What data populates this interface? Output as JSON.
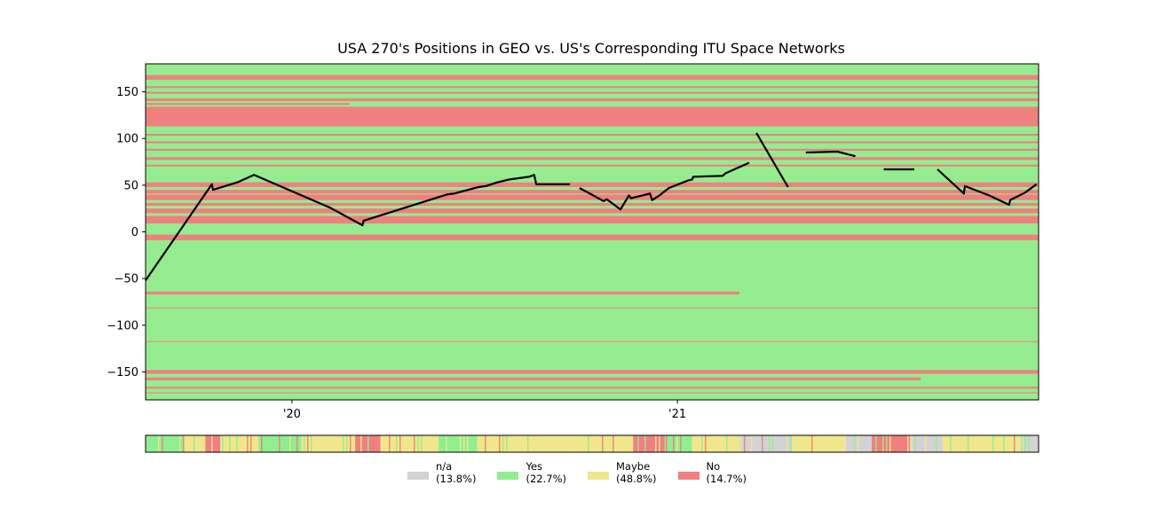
{
  "chart_data": [
    {
      "type": "line",
      "title": "USA 270's Positions in GEO vs. US's Corresponding ITU Space Networks",
      "xlabel": "",
      "ylabel": "",
      "ylim": [
        -180,
        180
      ],
      "xlim": [
        "2019-08-15",
        "2021-12-10"
      ],
      "x_tick_labels": [
        {
          "date": "2020-01-01",
          "label": "'20"
        },
        {
          "date": "2021-01-01",
          "label": "'21"
        }
      ],
      "y_ticks": [
        150,
        100,
        50,
        0,
        -50,
        -100,
        -150
      ],
      "y_tick_labels": [
        "150",
        "100",
        "50",
        "0",
        "−50",
        "−100",
        "−150"
      ],
      "grid": false,
      "line_color": "#000000",
      "background_bands": {
        "description": "Horizontal longitude bands colored by ITU network status",
        "default_color": "#90ee90",
        "bands": [
          {
            "from": 163,
            "to": 168,
            "color": "#f08080"
          },
          {
            "from": 154,
            "to": 156,
            "color": "#f08080"
          },
          {
            "from": 148,
            "to": 150,
            "color": "#f08080"
          },
          {
            "from": 140,
            "to": 143,
            "color": "#f08080"
          },
          {
            "from": 136,
            "to": 138,
            "color": "#f08080",
            "x_end": "2020-02-25"
          },
          {
            "from": 113,
            "to": 134,
            "color": "#f08080"
          },
          {
            "from": 103,
            "to": 105,
            "color": "#f08080"
          },
          {
            "from": 95,
            "to": 97,
            "color": "#f08080"
          },
          {
            "from": 87,
            "to": 89,
            "color": "#f08080"
          },
          {
            "from": 77,
            "to": 80,
            "color": "#f08080"
          },
          {
            "from": 70,
            "to": 72,
            "color": "#f08080"
          },
          {
            "from": 48,
            "to": 53,
            "color": "#f08080"
          },
          {
            "from": 41,
            "to": 45,
            "color": "#f08080"
          },
          {
            "from": 34,
            "to": 40,
            "color": "#f08080"
          },
          {
            "from": 28,
            "to": 31,
            "color": "#f08080"
          },
          {
            "from": 20,
            "to": 25,
            "color": "#f08080"
          },
          {
            "from": 9,
            "to": 17,
            "color": "#f08080"
          },
          {
            "from": -9,
            "to": -3,
            "color": "#f08080"
          },
          {
            "from": -67,
            "to": -64,
            "color": "#f08080",
            "x_end": "2021-03-01"
          },
          {
            "from": -82,
            "to": -81,
            "color": "#f08080"
          },
          {
            "from": -118,
            "to": -117,
            "color": "#f08080"
          },
          {
            "from": -152,
            "to": -148,
            "color": "#f08080"
          },
          {
            "from": -159,
            "to": -156,
            "color": "#f08080",
            "x_end": "2021-08-20"
          },
          {
            "from": -168,
            "to": -166,
            "color": "#f08080"
          },
          {
            "from": -173,
            "to": -172,
            "color": "#f08080"
          }
        ]
      },
      "series": [
        {
          "values": [
            [
              "2019-08-15",
              -52
            ],
            [
              "2019-10-17",
              51
            ],
            [
              "2019-10-18",
              45
            ],
            [
              "2019-11-10",
              53
            ],
            [
              "2019-11-26",
              61
            ],
            [
              "2020-02-06",
              26
            ],
            [
              "2020-02-11",
              23
            ],
            [
              "2020-03-08",
              7
            ],
            [
              "2020-03-09",
              12
            ],
            [
              "2020-05-27",
              40
            ],
            [
              "2020-06-03",
              41
            ],
            [
              "2020-06-26",
              48
            ],
            [
              "2020-07-03",
              49
            ],
            [
              "2020-07-14",
              53
            ],
            [
              "2020-07-25",
              56
            ],
            [
              "2020-08-13",
              59
            ],
            [
              "2020-08-18",
              61
            ],
            [
              "2020-08-20",
              51
            ],
            [
              "2020-09-21",
              51
            ]
          ]
        },
        {
          "values": [
            [
              "2020-09-30",
              47
            ],
            [
              "2020-10-23",
              33
            ],
            [
              "2020-10-26",
              35
            ],
            [
              "2020-11-08",
              24
            ],
            [
              "2020-11-16",
              39
            ],
            [
              "2020-11-18",
              36
            ],
            [
              "2020-12-06",
              41
            ],
            [
              "2020-12-08",
              34
            ],
            [
              "2020-12-15",
              39
            ],
            [
              "2020-12-24",
              47
            ],
            [
              "2021-01-11",
              55
            ],
            [
              "2021-01-15",
              56
            ],
            [
              "2021-01-16",
              59
            ],
            [
              "2021-02-13",
              60
            ],
            [
              "2021-02-16",
              63
            ],
            [
              "2021-03-10",
              74
            ]
          ]
        },
        {
          "values": [
            [
              "2021-03-17",
              106
            ],
            [
              "2021-04-16",
              48
            ]
          ]
        },
        {
          "values": [
            [
              "2021-05-03",
              85
            ],
            [
              "2021-06-02",
              86
            ],
            [
              "2021-06-19",
              81
            ]
          ]
        },
        {
          "values": [
            [
              "2021-07-16",
              67
            ],
            [
              "2021-08-14",
              67
            ]
          ]
        },
        {
          "values": [
            [
              "2021-09-05",
              67
            ],
            [
              "2021-09-30",
              41
            ],
            [
              "2021-10-01",
              49
            ],
            [
              "2021-10-24",
              39
            ],
            [
              "2021-11-12",
              29
            ],
            [
              "2021-11-13",
              34
            ],
            [
              "2021-11-27",
              42
            ],
            [
              "2021-12-08",
              51
            ]
          ]
        }
      ]
    },
    {
      "type": "heatmap",
      "description": "Status strip over time",
      "colors": {
        "na": "#d3d3d3",
        "yes": "#90ee90",
        "maybe": "#f0e68c",
        "no": "#f08080"
      },
      "segments": [
        {
          "from": "2019-08-15",
          "to": "2019-09-20",
          "status": "yes"
        },
        {
          "from": "2019-09-20",
          "to": "2019-10-10",
          "status": "maybe"
        },
        {
          "from": "2019-10-10",
          "to": "2019-10-25",
          "status": "no"
        },
        {
          "from": "2019-10-25",
          "to": "2019-11-30",
          "status": "maybe"
        },
        {
          "from": "2019-11-30",
          "to": "2020-01-10",
          "status": "yes"
        },
        {
          "from": "2020-01-10",
          "to": "2020-03-01",
          "status": "maybe"
        },
        {
          "from": "2020-03-01",
          "to": "2020-03-25",
          "status": "no"
        },
        {
          "from": "2020-03-25",
          "to": "2020-05-20",
          "status": "maybe"
        },
        {
          "from": "2020-05-20",
          "to": "2020-06-25",
          "status": "yes"
        },
        {
          "from": "2020-06-25",
          "to": "2020-09-25",
          "status": "maybe"
        },
        {
          "from": "2020-09-25",
          "to": "2020-11-20",
          "status": "maybe"
        },
        {
          "from": "2020-11-20",
          "to": "2020-12-20",
          "status": "no"
        },
        {
          "from": "2020-12-20",
          "to": "2021-01-15",
          "status": "yes"
        },
        {
          "from": "2021-01-15",
          "to": "2021-03-01",
          "status": "maybe"
        },
        {
          "from": "2021-03-01",
          "to": "2021-04-20",
          "status": "na"
        },
        {
          "from": "2021-04-20",
          "to": "2021-06-10",
          "status": "maybe"
        },
        {
          "from": "2021-06-10",
          "to": "2021-07-05",
          "status": "na"
        },
        {
          "from": "2021-07-05",
          "to": "2021-08-10",
          "status": "no"
        },
        {
          "from": "2021-08-10",
          "to": "2021-09-10",
          "status": "na"
        },
        {
          "from": "2021-09-10",
          "to": "2021-11-25",
          "status": "maybe"
        },
        {
          "from": "2021-11-25",
          "to": "2021-12-10",
          "status": "na"
        }
      ]
    }
  ],
  "legend": [
    {
      "name": "n/a",
      "pct": "(13.8%)",
      "color": "#d3d3d3"
    },
    {
      "name": "Yes",
      "pct": "(22.7%)",
      "color": "#90ee90"
    },
    {
      "name": "Maybe",
      "pct": "(48.8%)",
      "color": "#f0e68c"
    },
    {
      "name": "No",
      "pct": "(14.7%)",
      "color": "#f08080"
    }
  ]
}
